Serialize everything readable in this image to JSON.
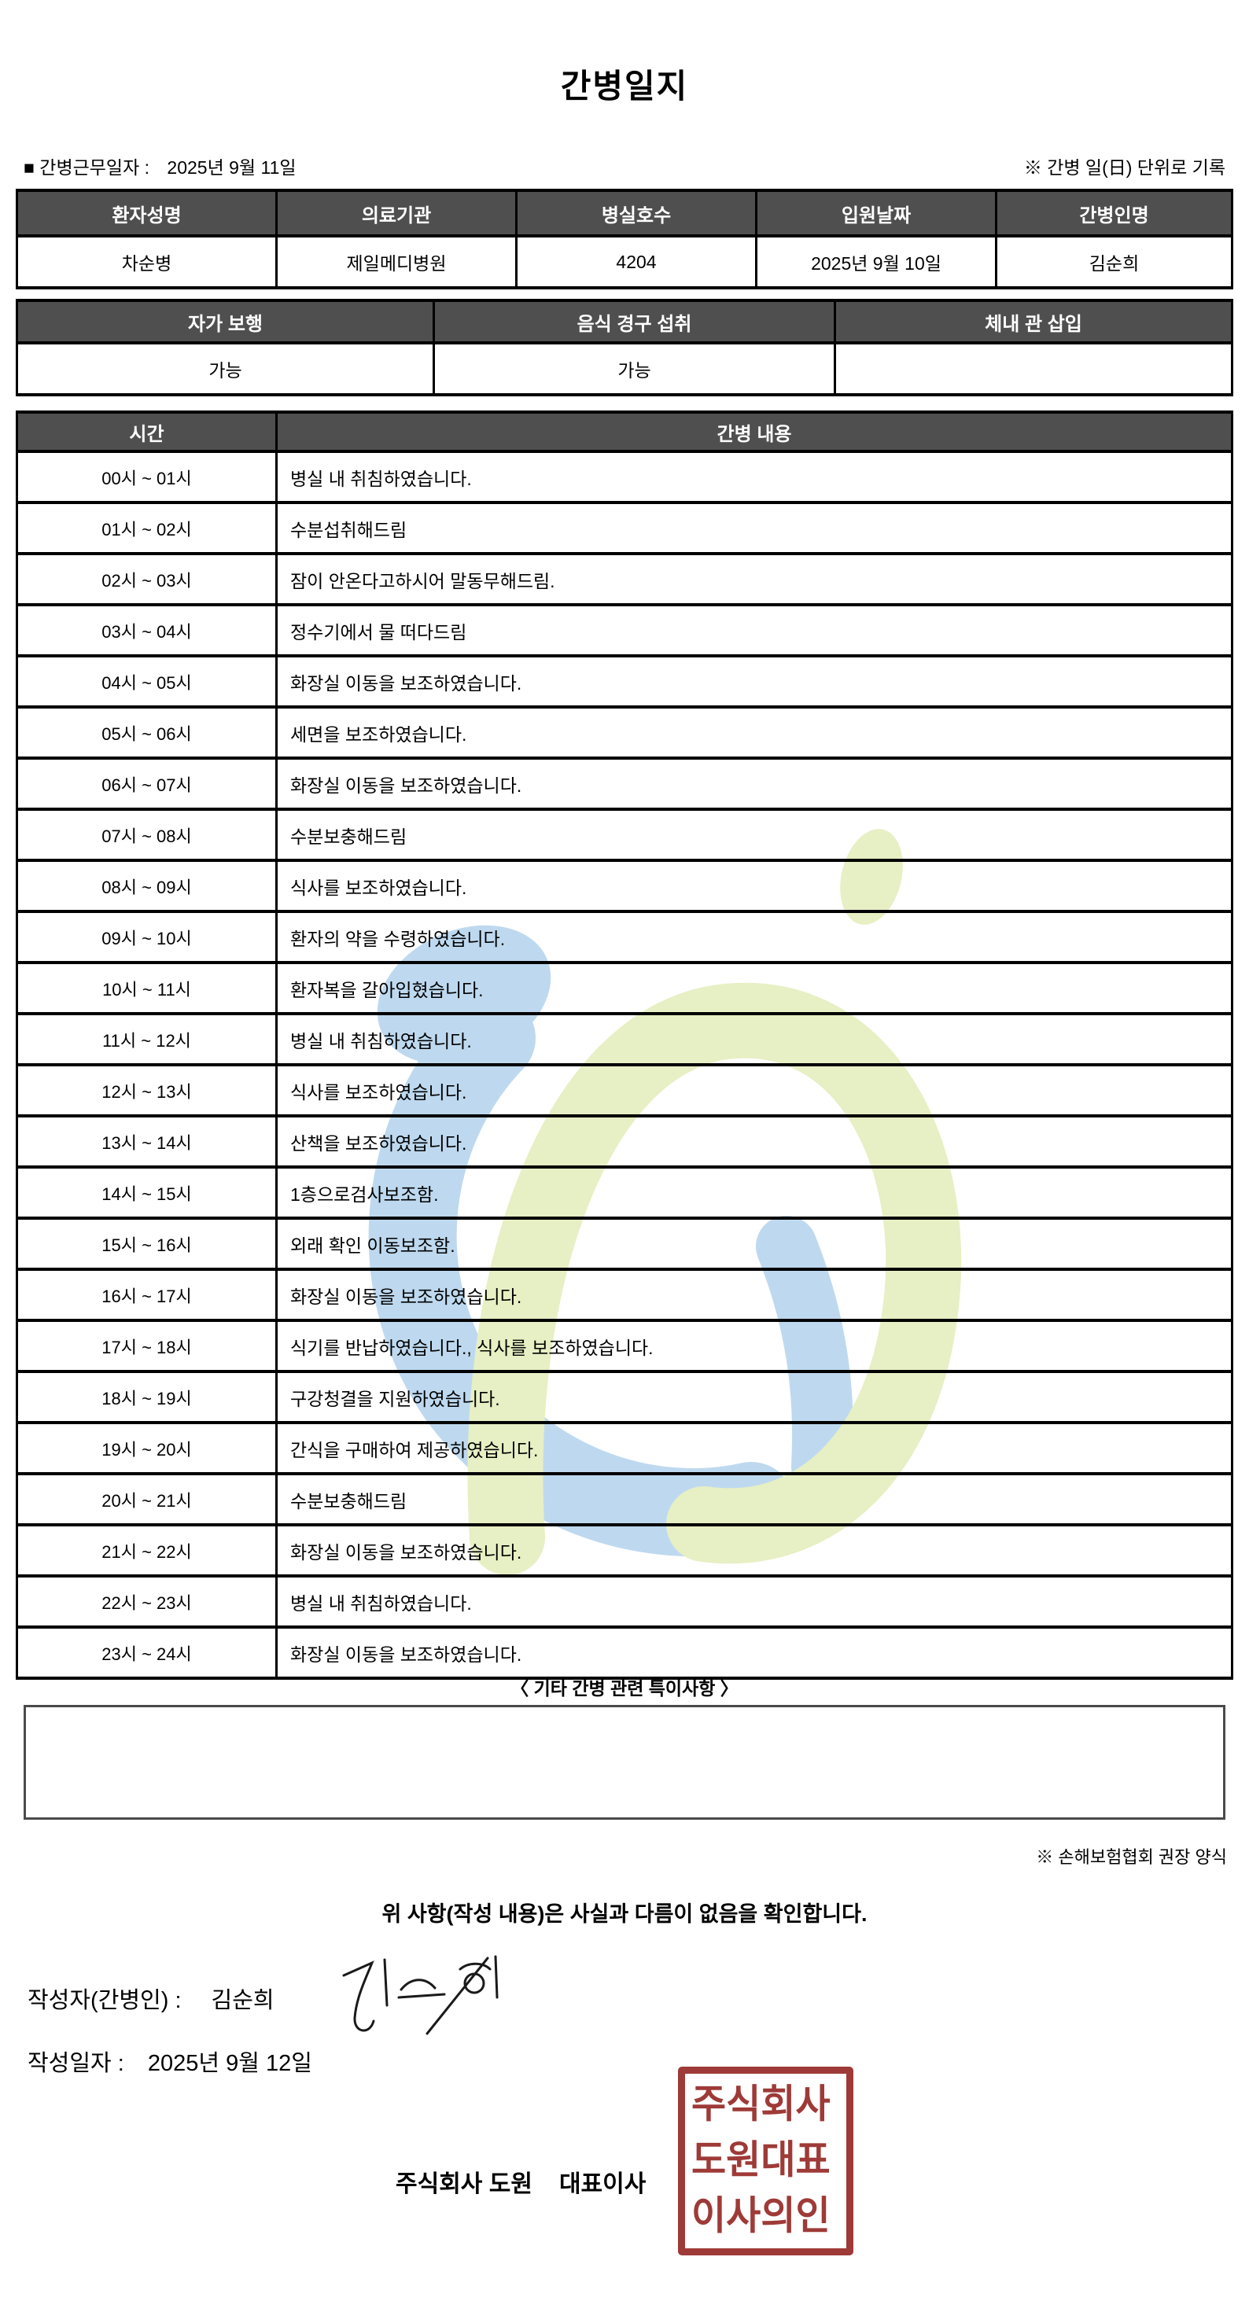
{
  "title": "간병일지",
  "meta": {
    "work_date_label": "■ 간병근무일자  :",
    "work_date_value": "2025년 9월 11일",
    "unit_note": "※ 간병 일(日) 단위로 기록"
  },
  "patient_table": {
    "headers": [
      "환자성명",
      "의료기관",
      "병실호수",
      "입원날짜",
      "간병인명"
    ],
    "values": [
      "차순병",
      "제일메디병원",
      "4204",
      "2025년 9월 10일",
      "김순희"
    ]
  },
  "condition_table": {
    "headers": [
      "자가 보행",
      "음식 경구 섭취",
      "체내 관 삽입"
    ],
    "values": [
      "가능",
      "가능",
      ""
    ]
  },
  "log_table": {
    "time_header": "시간",
    "content_header": "간병 내용",
    "rows": [
      {
        "time": "00시 ~ 01시",
        "content": "병실 내 취침하였습니다."
      },
      {
        "time": "01시 ~ 02시",
        "content": "수분섭취해드림"
      },
      {
        "time": "02시 ~ 03시",
        "content": "잠이 안온다고하시어 말동무해드림."
      },
      {
        "time": "03시 ~ 04시",
        "content": "정수기에서 물 떠다드림"
      },
      {
        "time": "04시 ~ 05시",
        "content": "화장실 이동을 보조하였습니다."
      },
      {
        "time": "05시 ~ 06시",
        "content": "세면을 보조하였습니다."
      },
      {
        "time": "06시 ~ 07시",
        "content": "화장실 이동을 보조하였습니다."
      },
      {
        "time": "07시 ~ 08시",
        "content": "수분보충해드림"
      },
      {
        "time": "08시 ~ 09시",
        "content": "식사를 보조하였습니다."
      },
      {
        "time": "09시 ~ 10시",
        "content": "환자의 약을 수령하였습니다."
      },
      {
        "time": "10시 ~ 11시",
        "content": "환자복을 갈아입혔습니다."
      },
      {
        "time": "11시 ~ 12시",
        "content": "병실 내 취침하였습니다."
      },
      {
        "time": "12시 ~ 13시",
        "content": "식사를 보조하였습니다."
      },
      {
        "time": "13시 ~ 14시",
        "content": "산책을 보조하였습니다."
      },
      {
        "time": "14시 ~ 15시",
        "content": "1층으로검사보조함."
      },
      {
        "time": "15시 ~ 16시",
        "content": "외래 확인 이동보조함."
      },
      {
        "time": "16시 ~ 17시",
        "content": "화장실 이동을 보조하였습니다."
      },
      {
        "time": "17시 ~ 18시",
        "content": "식기를 반납하였습니다., 식사를 보조하였습니다."
      },
      {
        "time": "18시 ~ 19시",
        "content": "구강청결을 지원하였습니다."
      },
      {
        "time": "19시 ~ 20시",
        "content": "간식을 구매하여 제공하였습니다."
      },
      {
        "time": "20시 ~ 21시",
        "content": "수분보충해드림"
      },
      {
        "time": "21시 ~ 22시",
        "content": "화장실 이동을 보조하였습니다."
      },
      {
        "time": "22시 ~ 23시",
        "content": "병실 내 취침하였습니다."
      },
      {
        "time": "23시 ~ 24시",
        "content": "화장실 이동을 보조하였습니다."
      }
    ]
  },
  "notes": {
    "heading": "〈 기타 간병 관련 특이사항 〉",
    "content": "",
    "form_note": "※ 손해보험협회 권장 양식"
  },
  "confirmation": "위 사항(작성 내용)은 사실과 다름이 없음을 확인합니다.",
  "signature": {
    "writer_label": "작성자(간병인) :",
    "writer_name": "김순희",
    "date_label": "작성일자 :",
    "date_value": "2025년 9월 12일"
  },
  "company": {
    "name_line": "주식회사 도원",
    "rep_line": "대표이사",
    "seal_rows": [
      "주식회사",
      "도원대표",
      "이사의인"
    ]
  },
  "colors": {
    "header_bg": "#4f4f4f",
    "header_text": "#ffffff",
    "seal_red": "#9e3a37",
    "watermark_blue": "#bed9ef",
    "watermark_green": "#e7efc4"
  }
}
